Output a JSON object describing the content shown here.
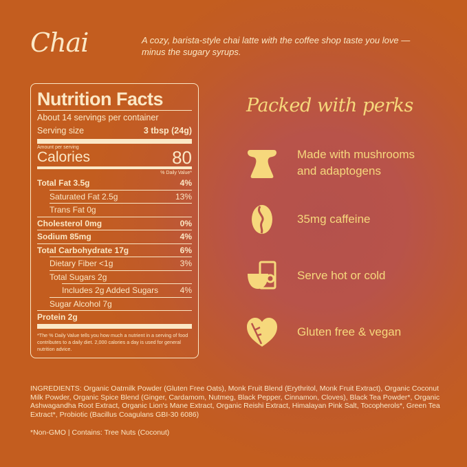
{
  "title": "Chai",
  "description": "A cozy, barista-style chai latte with the coffee shop taste you love — minus the sugary syrups.",
  "nutrition": {
    "heading": "Nutrition Facts",
    "servings": "About 14 servings per container",
    "serving_size_label": "Serving size",
    "serving_size": "3 tbsp (24g)",
    "amount_label": "Amount per serving",
    "calories_label": "Calories",
    "calories": "80",
    "dv_label": "% Daily Value*",
    "rows": [
      {
        "label": "Total Fat 3.5g",
        "dv": "4%"
      },
      {
        "label": "Saturated Fat 2.5g",
        "dv": "13%"
      },
      {
        "label": "Trans Fat 0g",
        "dv": ""
      },
      {
        "label": "Cholesterol 0mg",
        "dv": "0%"
      },
      {
        "label": "Sodium 85mg",
        "dv": "4%"
      },
      {
        "label": "Total Carbohydrate 17g",
        "dv": "6%"
      },
      {
        "label": "Dietary Fiber <1g",
        "dv": "3%"
      },
      {
        "label": "Total Sugars 2g",
        "dv": ""
      },
      {
        "label": "Includes 2g Added Sugars",
        "dv": "4%"
      },
      {
        "label": "Sugar Alcohol 7g",
        "dv": ""
      },
      {
        "label": "Protein 2g",
        "dv": ""
      }
    ],
    "footnote": "*The % Daily Value tells you how much a nutrient in a serving of food contributes to a daily diet. 2,000 calories a day is used for general nutrition advice."
  },
  "perks": {
    "heading": "Packed with perks",
    "items": [
      {
        "icon": "mushroom-icon",
        "label": "Made with mushrooms and adaptogens"
      },
      {
        "icon": "coffee-bean-icon",
        "label": "35mg caffeine"
      },
      {
        "icon": "cup-and-glass-icon",
        "label": "Serve hot or cold"
      },
      {
        "icon": "leaf-heart-icon",
        "label": "Gluten free & vegan"
      }
    ]
  },
  "ingredients": "INGREDIENTS: Organic Oatmilk Powder (Gluten Free Oats), Monk Fruit Blend (Erythritol, Monk Fruit Extract), Organic Coconut Milk Powder, Organic Spice Blend (Ginger, Cardamom, Nutmeg, Black Pepper, Cinnamon, Cloves), Black Tea Powder*, Organic Ashwagandha Root Extract, Organic Lion's Mane Extract, Organic Reishi Extract, Himalayan Pink Salt, Tocopherols*, Green Tea Extract*, Probiotic (Bacillus Coagulans GBI-30 6086)",
  "allergens": "*Non-GMO | Contains: Tree Nuts (Coconut)",
  "colors": {
    "text": "#fbe8c6",
    "accent": "#f6d87c",
    "background": "#c35d1f"
  }
}
